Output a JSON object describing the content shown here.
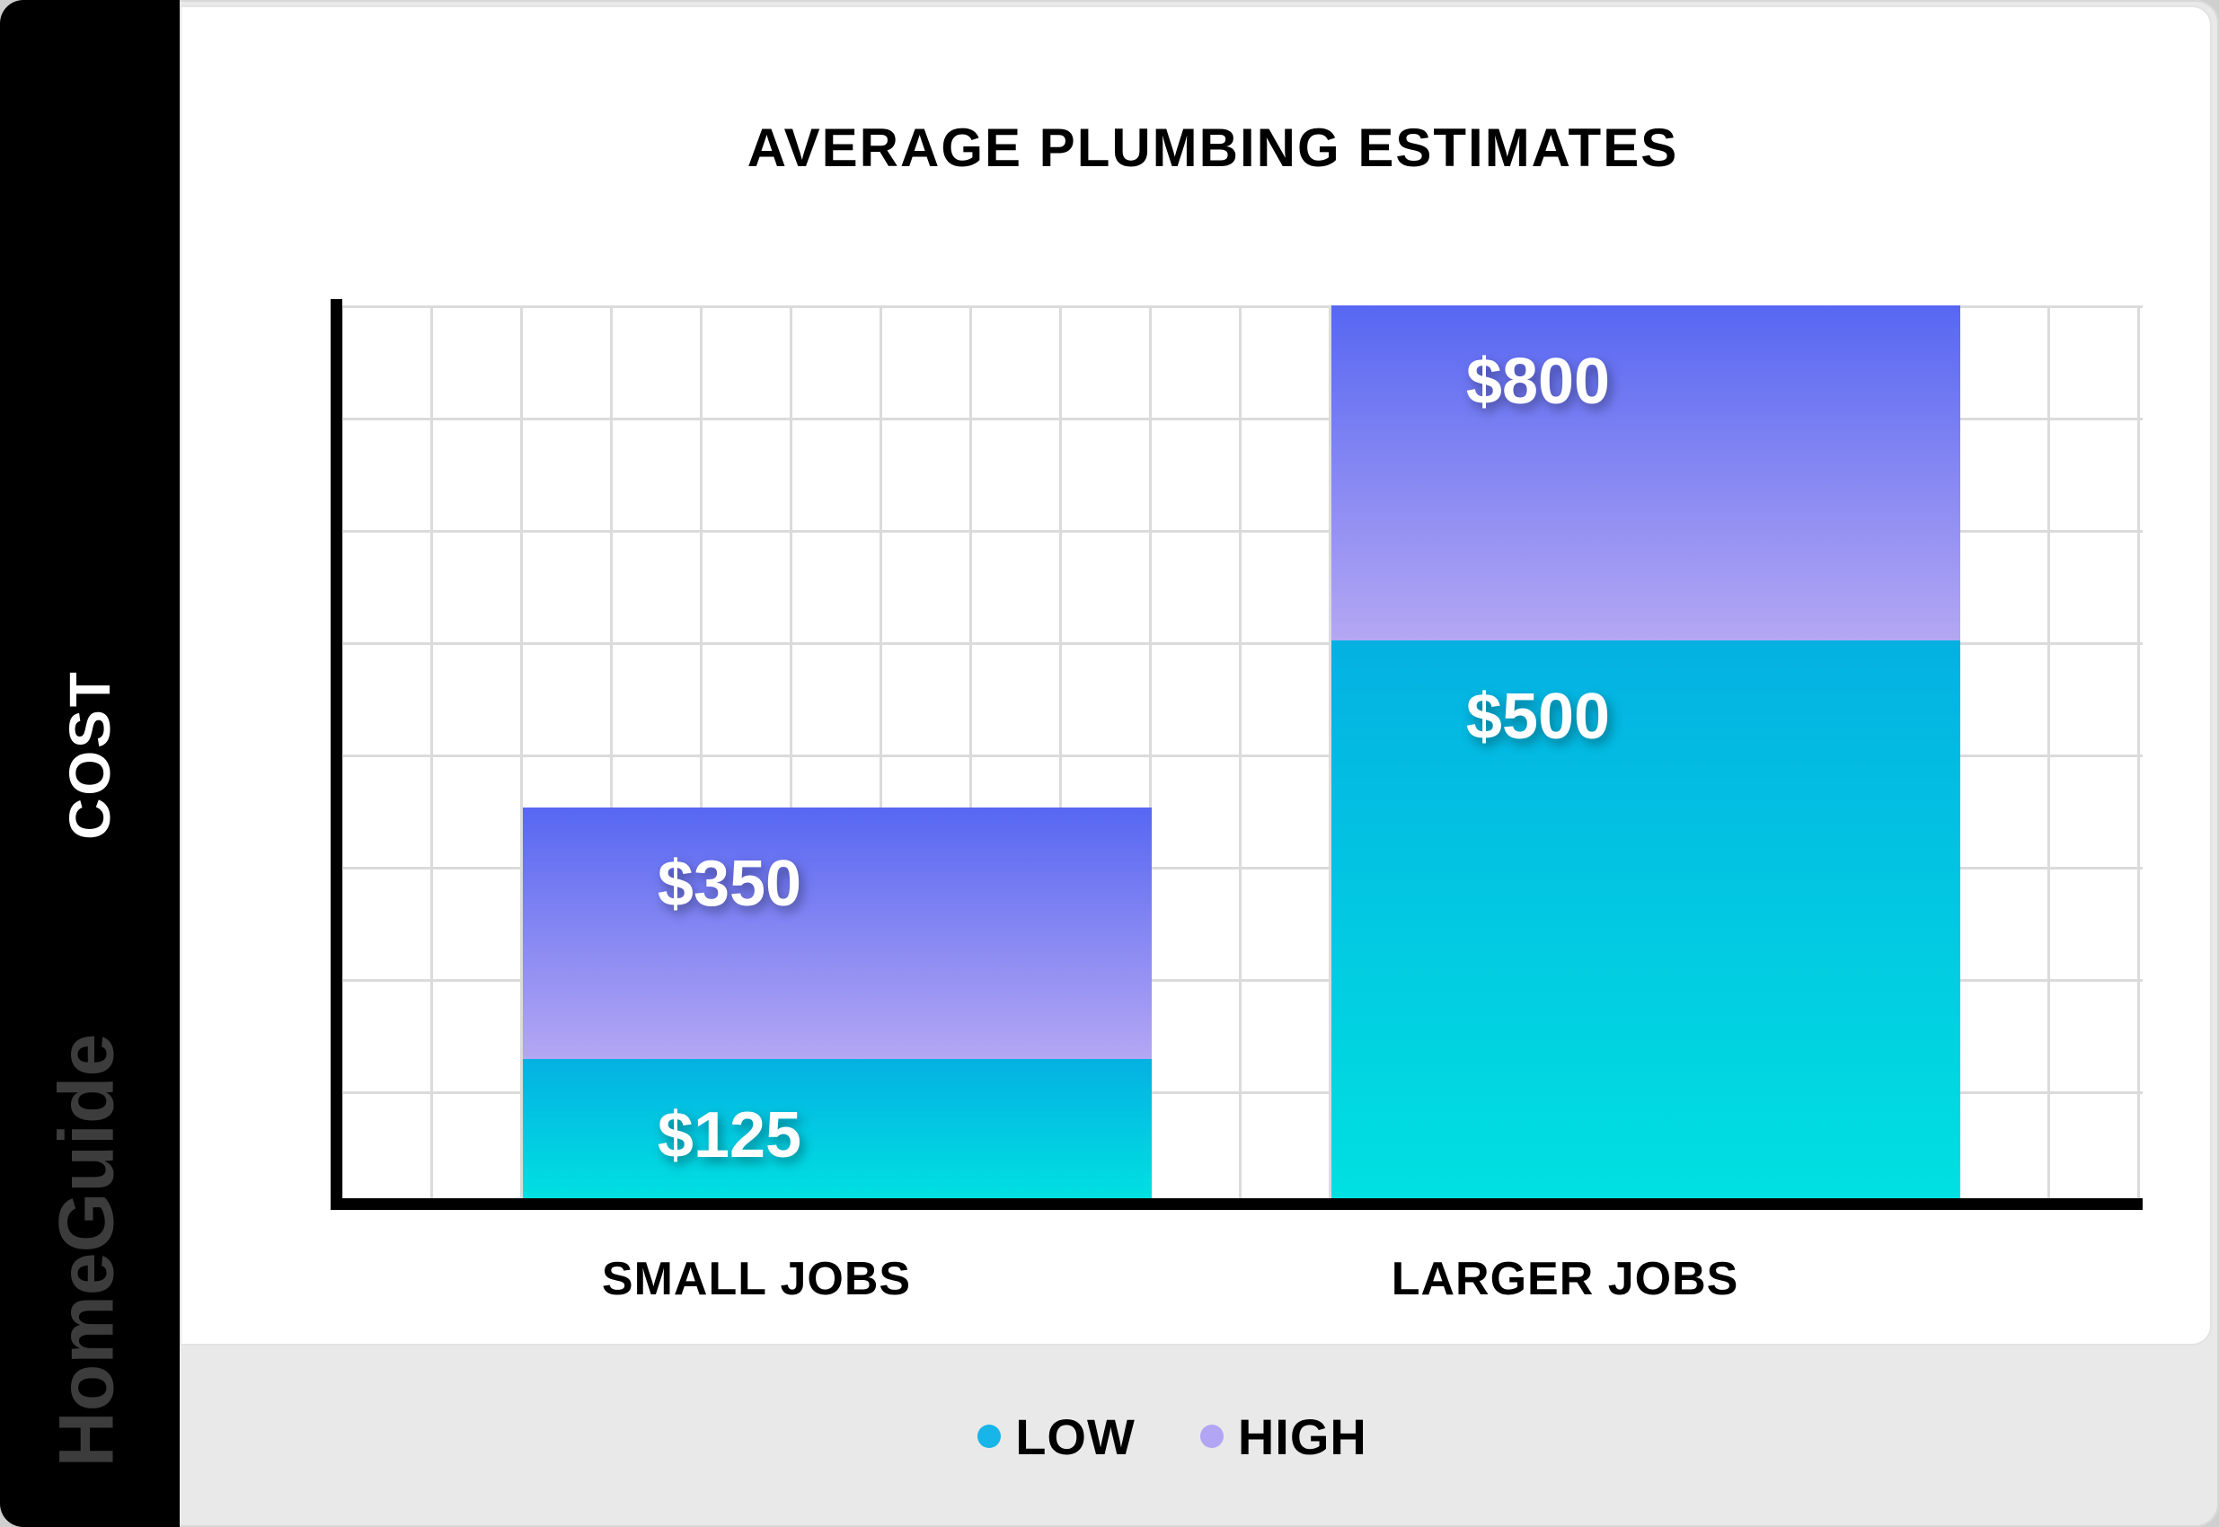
{
  "frame": {
    "background": "#e9e9e9",
    "card_background": "#ffffff",
    "sidebar_background": "#000000"
  },
  "sidebar": {
    "axis_label": "COST",
    "brand": "HomeGuide",
    "brand_color": "#3c3c3c"
  },
  "chart_data": {
    "type": "bar",
    "title": "AVERAGE PLUMBING ESTIMATES",
    "categories": [
      "SMALL JOBS",
      "LARGER JOBS"
    ],
    "series": [
      {
        "name": "LOW",
        "values": [
          125,
          500
        ],
        "labels": [
          "$125",
          "$500"
        ],
        "color_top": "#04b1e2",
        "color_bottom": "#00e0e1",
        "dot_color": "#17b5e8"
      },
      {
        "name": "HIGH",
        "values": [
          350,
          800
        ],
        "labels": [
          "$350",
          "$800"
        ],
        "color_top": "#5767f2",
        "color_bottom": "#b4a7f3",
        "dot_color": "#b2a5f4"
      }
    ],
    "ylabel": "COST",
    "ylim": [
      0,
      800
    ],
    "grid": true,
    "legend_position": "bottom"
  }
}
